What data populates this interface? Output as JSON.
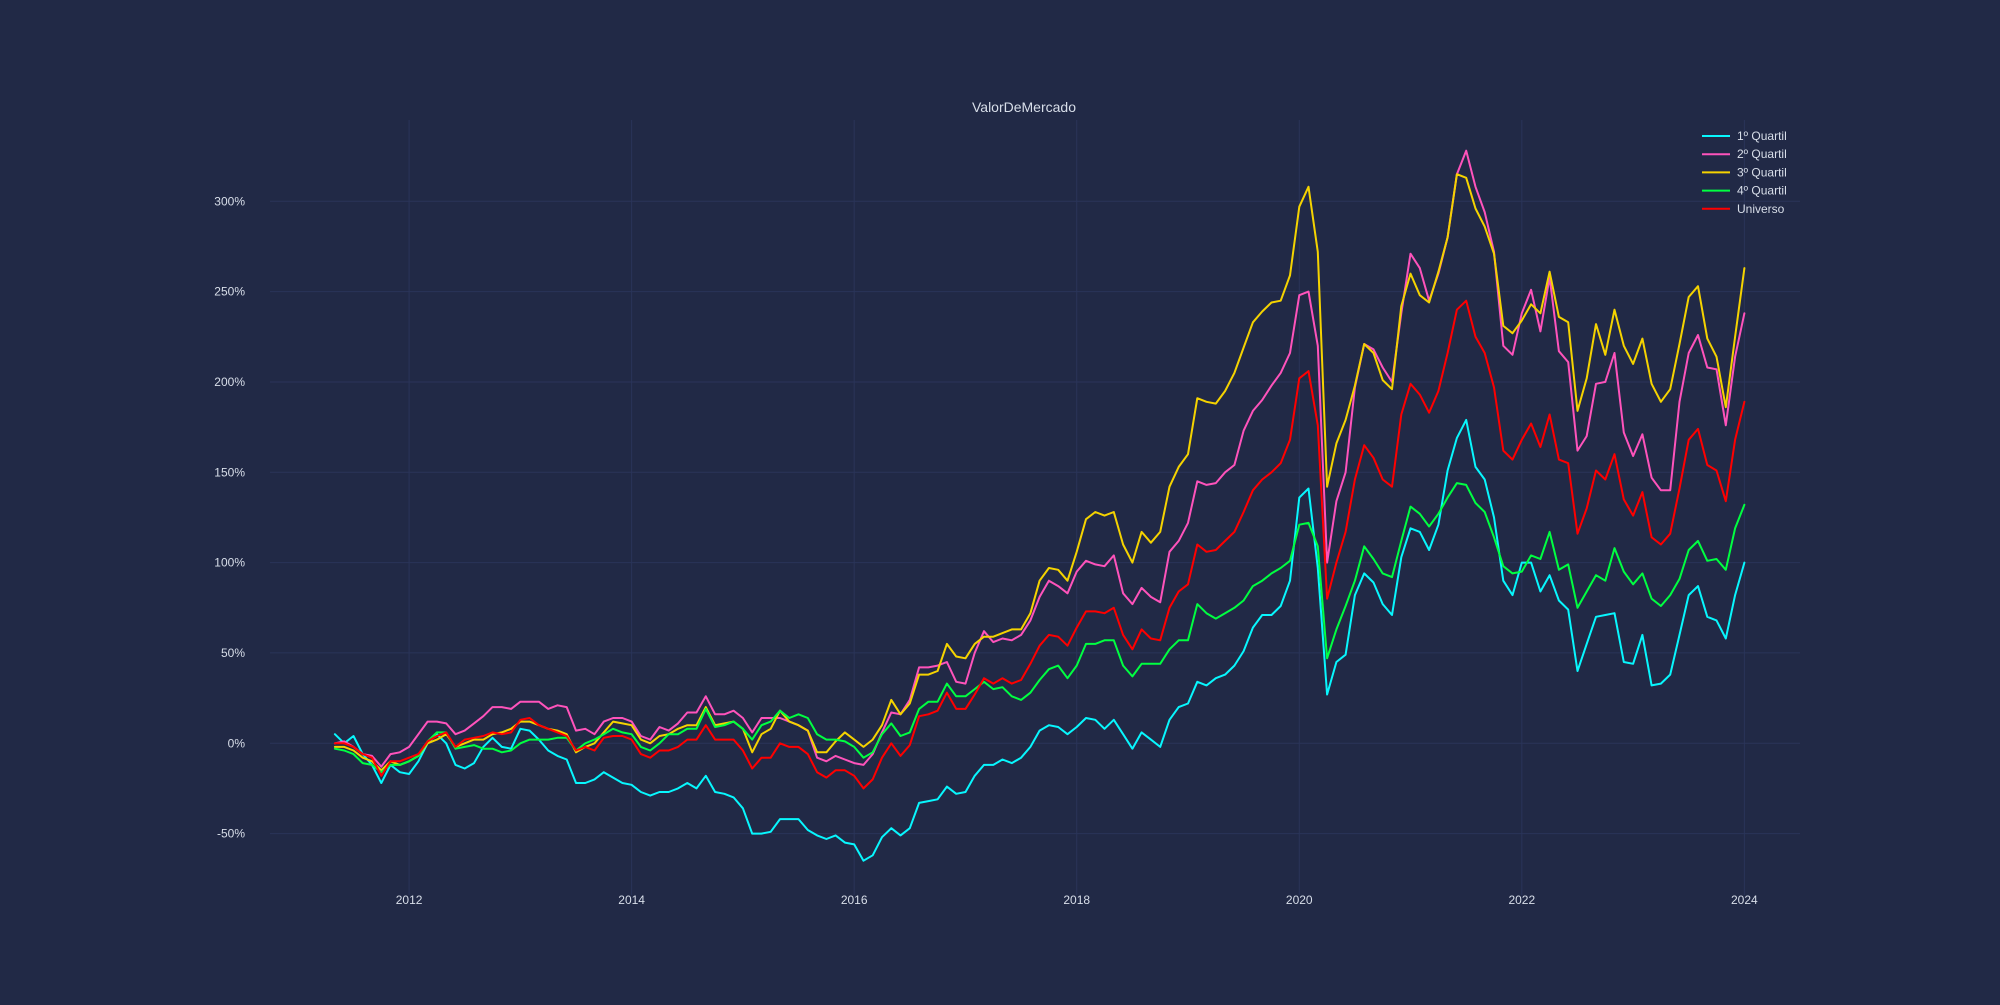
{
  "chart_data": {
    "type": "line",
    "title": "ValorDeMercado",
    "xlabel": "",
    "ylabel": "",
    "x_ticks": [
      "2012",
      "2014",
      "2016",
      "2018",
      "2020",
      "2022",
      "2024"
    ],
    "y_ticks": [
      "-50%",
      "0%",
      "50%",
      "100%",
      "150%",
      "200%",
      "250%",
      "300%"
    ],
    "xlim": [
      "2010-10",
      "2024-07"
    ],
    "ylim": [
      -0.84,
      3.45
    ],
    "x_start": "2011-05",
    "x_end": "2023-12",
    "grid": true,
    "legend_position": "top-right",
    "colors": {
      "background": "#212946",
      "grid": "#2A3459",
      "text": "#D8DEE9"
    },
    "series": [
      {
        "name": "1º Quartil",
        "color": "#08F7FE",
        "values": [
          0.05,
          0.0,
          0.04,
          -0.06,
          -0.12,
          -0.22,
          -0.12,
          -0.16,
          -0.17,
          -0.1,
          0.0,
          0.05,
          0.0,
          -0.12,
          -0.14,
          -0.11,
          -0.02,
          0.03,
          -0.02,
          -0.03,
          0.08,
          0.07,
          0.02,
          -0.04,
          -0.07,
          -0.09,
          -0.22,
          -0.22,
          -0.2,
          -0.16,
          -0.19,
          -0.22,
          -0.23,
          -0.27,
          -0.29,
          -0.27,
          -0.27,
          -0.25,
          -0.22,
          -0.25,
          -0.18,
          -0.27,
          -0.28,
          -0.3,
          -0.36,
          -0.5,
          -0.5,
          -0.49,
          -0.42,
          -0.42,
          -0.42,
          -0.48,
          -0.51,
          -0.53,
          -0.51,
          -0.55,
          -0.56,
          -0.65,
          -0.62,
          -0.52,
          -0.47,
          -0.51,
          -0.47,
          -0.33,
          -0.32,
          -0.31,
          -0.24,
          -0.28,
          -0.27,
          -0.18,
          -0.12,
          -0.12,
          -0.09,
          -0.11,
          -0.08,
          -0.02,
          0.07,
          0.1,
          0.09,
          0.05,
          0.09,
          0.14,
          0.13,
          0.08,
          0.13,
          0.05,
          -0.03,
          0.06,
          0.02,
          -0.02,
          0.13,
          0.2,
          0.22,
          0.34,
          0.32,
          0.36,
          0.38,
          0.43,
          0.51,
          0.64,
          0.71,
          0.71,
          0.76,
          0.9,
          1.36,
          1.41,
          0.97,
          0.27,
          0.45,
          0.49,
          0.82,
          0.94,
          0.89,
          0.77,
          0.71,
          1.03,
          1.19,
          1.17,
          1.07,
          1.21,
          1.51,
          1.69,
          1.79,
          1.53,
          1.46,
          1.25,
          0.9,
          0.82,
          1.0,
          1.0,
          0.84,
          0.93,
          0.79,
          0.74,
          0.4,
          0.55,
          0.7,
          0.71,
          0.72,
          0.45,
          0.44,
          0.6,
          0.32,
          0.33,
          0.38,
          0.6,
          0.82,
          0.87,
          0.7,
          0.68,
          0.58,
          0.82,
          1.0
        ]
      },
      {
        "name": "2º Quartil",
        "color": "#FE53BB",
        "values": [
          0.0,
          0.01,
          -0.02,
          -0.06,
          -0.07,
          -0.13,
          -0.06,
          -0.05,
          -0.02,
          0.05,
          0.12,
          0.12,
          0.11,
          0.05,
          0.07,
          0.11,
          0.15,
          0.2,
          0.2,
          0.19,
          0.23,
          0.23,
          0.23,
          0.19,
          0.21,
          0.2,
          0.07,
          0.08,
          0.05,
          0.12,
          0.14,
          0.14,
          0.12,
          0.04,
          0.02,
          0.09,
          0.07,
          0.11,
          0.17,
          0.17,
          0.26,
          0.16,
          0.16,
          0.18,
          0.14,
          0.06,
          0.14,
          0.14,
          0.14,
          0.12,
          0.1,
          0.07,
          -0.08,
          -0.1,
          -0.07,
          -0.09,
          -0.11,
          -0.12,
          -0.06,
          0.06,
          0.17,
          0.16,
          0.24,
          0.42,
          0.42,
          0.43,
          0.45,
          0.34,
          0.33,
          0.5,
          0.62,
          0.56,
          0.58,
          0.57,
          0.6,
          0.68,
          0.81,
          0.9,
          0.87,
          0.83,
          0.95,
          1.01,
          0.99,
          0.98,
          1.04,
          0.83,
          0.77,
          0.86,
          0.81,
          0.78,
          1.06,
          1.12,
          1.22,
          1.45,
          1.43,
          1.44,
          1.5,
          1.54,
          1.73,
          1.84,
          1.9,
          1.98,
          2.05,
          2.16,
          2.48,
          2.5,
          2.2,
          1.0,
          1.34,
          1.5,
          1.97,
          2.21,
          2.18,
          2.08,
          2.0,
          2.38,
          2.71,
          2.63,
          2.45,
          2.6,
          2.8,
          3.15,
          3.28,
          3.08,
          2.94,
          2.72,
          2.2,
          2.15,
          2.38,
          2.51,
          2.28,
          2.58,
          2.17,
          2.11,
          1.62,
          1.7,
          1.99,
          2.0,
          2.16,
          1.72,
          1.59,
          1.71,
          1.47,
          1.4,
          1.4,
          1.89,
          2.16,
          2.26,
          2.08,
          2.07,
          1.76,
          2.14,
          2.38
        ]
      },
      {
        "name": "3º Quartil",
        "color": "#F5D300",
        "values": [
          -0.02,
          -0.02,
          -0.04,
          -0.08,
          -0.1,
          -0.15,
          -0.1,
          -0.12,
          -0.1,
          -0.07,
          0.0,
          0.02,
          0.05,
          -0.02,
          0.0,
          0.02,
          0.02,
          0.05,
          0.06,
          0.08,
          0.12,
          0.12,
          0.1,
          0.08,
          0.07,
          0.05,
          -0.05,
          -0.02,
          0.0,
          0.06,
          0.12,
          0.11,
          0.1,
          0.02,
          0.0,
          0.04,
          0.05,
          0.08,
          0.1,
          0.1,
          0.2,
          0.1,
          0.11,
          0.12,
          0.08,
          -0.05,
          0.05,
          0.08,
          0.18,
          0.12,
          0.1,
          0.07,
          -0.05,
          -0.05,
          0.01,
          0.06,
          0.02,
          -0.02,
          0.02,
          0.1,
          0.24,
          0.16,
          0.22,
          0.38,
          0.38,
          0.4,
          0.55,
          0.48,
          0.47,
          0.55,
          0.59,
          0.59,
          0.61,
          0.63,
          0.63,
          0.72,
          0.9,
          0.97,
          0.96,
          0.9,
          1.06,
          1.24,
          1.28,
          1.26,
          1.28,
          1.1,
          1.0,
          1.17,
          1.11,
          1.17,
          1.42,
          1.53,
          1.6,
          1.91,
          1.89,
          1.88,
          1.95,
          2.05,
          2.19,
          2.33,
          2.39,
          2.44,
          2.45,
          2.59,
          2.97,
          3.08,
          2.72,
          1.42,
          1.66,
          1.79,
          1.98,
          2.21,
          2.16,
          2.01,
          1.96,
          2.42,
          2.6,
          2.48,
          2.44,
          2.61,
          2.8,
          3.15,
          3.13,
          2.96,
          2.86,
          2.71,
          2.31,
          2.27,
          2.34,
          2.43,
          2.38,
          2.61,
          2.36,
          2.33,
          1.84,
          2.02,
          2.32,
          2.15,
          2.4,
          2.2,
          2.1,
          2.24,
          1.99,
          1.89,
          1.96,
          2.21,
          2.47,
          2.53,
          2.24,
          2.14,
          1.86,
          2.25,
          2.63
        ]
      },
      {
        "name": "4º Quartil",
        "color": "#00FF41",
        "values": [
          -0.03,
          -0.04,
          -0.06,
          -0.11,
          -0.12,
          -0.16,
          -0.12,
          -0.12,
          -0.1,
          -0.07,
          0.01,
          0.06,
          0.06,
          -0.03,
          -0.02,
          -0.01,
          -0.03,
          -0.03,
          -0.05,
          -0.04,
          0.0,
          0.02,
          0.02,
          0.02,
          0.03,
          0.03,
          -0.04,
          0.0,
          0.02,
          0.05,
          0.08,
          0.06,
          0.05,
          -0.02,
          -0.04,
          0.0,
          0.05,
          0.05,
          0.08,
          0.08,
          0.19,
          0.09,
          0.1,
          0.12,
          0.08,
          0.02,
          0.1,
          0.12,
          0.18,
          0.14,
          0.16,
          0.14,
          0.05,
          0.02,
          0.02,
          0.01,
          -0.02,
          -0.08,
          -0.05,
          0.05,
          0.11,
          0.04,
          0.06,
          0.19,
          0.23,
          0.23,
          0.33,
          0.26,
          0.26,
          0.3,
          0.34,
          0.3,
          0.31,
          0.26,
          0.24,
          0.28,
          0.35,
          0.41,
          0.43,
          0.36,
          0.43,
          0.55,
          0.55,
          0.57,
          0.57,
          0.43,
          0.37,
          0.44,
          0.44,
          0.44,
          0.52,
          0.57,
          0.57,
          0.77,
          0.72,
          0.69,
          0.72,
          0.75,
          0.79,
          0.87,
          0.9,
          0.94,
          0.97,
          1.01,
          1.21,
          1.22,
          1.09,
          0.47,
          0.63,
          0.76,
          0.9,
          1.09,
          1.02,
          0.94,
          0.92,
          1.12,
          1.31,
          1.27,
          1.2,
          1.27,
          1.36,
          1.44,
          1.43,
          1.33,
          1.28,
          1.14,
          0.98,
          0.94,
          0.95,
          1.04,
          1.02,
          1.17,
          0.96,
          0.99,
          0.75,
          0.84,
          0.93,
          0.9,
          1.08,
          0.95,
          0.88,
          0.94,
          0.8,
          0.76,
          0.82,
          0.91,
          1.07,
          1.12,
          1.01,
          1.02,
          0.96,
          1.19,
          1.32
        ]
      },
      {
        "name": "Universo",
        "color": "#FF0000",
        "values": [
          0.0,
          0.0,
          -0.02,
          -0.06,
          -0.08,
          -0.18,
          -0.1,
          -0.1,
          -0.08,
          -0.06,
          0.01,
          0.04,
          0.06,
          -0.02,
          0.02,
          0.03,
          0.04,
          0.06,
          0.05,
          0.06,
          0.13,
          0.14,
          0.1,
          0.08,
          0.06,
          0.04,
          -0.04,
          -0.02,
          -0.04,
          0.03,
          0.04,
          0.04,
          0.02,
          -0.06,
          -0.08,
          -0.04,
          -0.04,
          -0.02,
          0.02,
          0.02,
          0.1,
          0.02,
          0.02,
          0.02,
          -0.04,
          -0.14,
          -0.08,
          -0.08,
          0.0,
          -0.02,
          -0.02,
          -0.06,
          -0.16,
          -0.19,
          -0.15,
          -0.15,
          -0.18,
          -0.25,
          -0.2,
          -0.08,
          0.0,
          -0.07,
          -0.01,
          0.15,
          0.16,
          0.18,
          0.28,
          0.19,
          0.19,
          0.27,
          0.36,
          0.33,
          0.36,
          0.33,
          0.35,
          0.44,
          0.54,
          0.6,
          0.59,
          0.54,
          0.64,
          0.73,
          0.73,
          0.72,
          0.75,
          0.6,
          0.52,
          0.63,
          0.58,
          0.57,
          0.75,
          0.84,
          0.88,
          1.1,
          1.06,
          1.07,
          1.12,
          1.17,
          1.28,
          1.4,
          1.46,
          1.5,
          1.55,
          1.68,
          2.02,
          2.06,
          1.76,
          0.8,
          1.0,
          1.17,
          1.46,
          1.65,
          1.58,
          1.46,
          1.42,
          1.82,
          1.99,
          1.93,
          1.83,
          1.95,
          2.16,
          2.4,
          2.45,
          2.25,
          2.16,
          1.97,
          1.62,
          1.57,
          1.68,
          1.77,
          1.64,
          1.82,
          1.57,
          1.55,
          1.16,
          1.3,
          1.51,
          1.46,
          1.6,
          1.35,
          1.26,
          1.39,
          1.14,
          1.1,
          1.16,
          1.41,
          1.68,
          1.74,
          1.54,
          1.51,
          1.34,
          1.68,
          1.89
        ]
      }
    ]
  }
}
